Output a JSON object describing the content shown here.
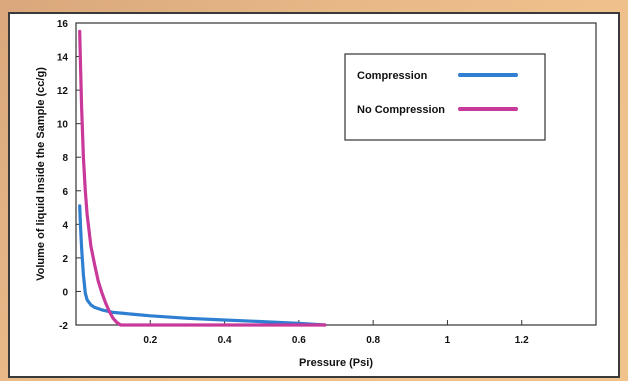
{
  "chart_data": {
    "type": "line",
    "xlabel": "Pressure (Psi)",
    "ylabel": "Volume of liquid Inside the Sample (cc/g)",
    "xlim": [
      0,
      1.4
    ],
    "ylim": [
      -2,
      16
    ],
    "xticks": [
      0.2,
      0.4,
      0.6,
      0.8,
      1,
      1.2
    ],
    "xtick_labels": [
      "0.2",
      "0.4",
      "0.6",
      "0.8",
      "1",
      "1.2"
    ],
    "yticks": [
      -2,
      0,
      2,
      4,
      6,
      8,
      10,
      12,
      14,
      16
    ],
    "ytick_labels": [
      "-2",
      "0",
      "2",
      "4",
      "6",
      "8",
      "10",
      "12",
      "14",
      "16"
    ],
    "grid": false,
    "legend_position": "top-right",
    "series": [
      {
        "name": "Compression",
        "color": "#2e7fd1",
        "x": [
          0.01,
          0.012,
          0.015,
          0.02,
          0.025,
          0.03,
          0.04,
          0.05,
          0.07,
          0.1,
          0.15,
          0.2,
          0.3,
          0.4,
          0.5,
          0.6,
          0.67
        ],
        "y": [
          5.1,
          3.9,
          2.6,
          1.0,
          -0.1,
          -0.5,
          -0.8,
          -0.95,
          -1.1,
          -1.25,
          -1.35,
          -1.45,
          -1.6,
          -1.7,
          -1.8,
          -1.9,
          -2.0
        ]
      },
      {
        "name": "No Compression",
        "color": "#c8399a",
        "x": [
          0.01,
          0.012,
          0.015,
          0.02,
          0.025,
          0.03,
          0.04,
          0.05,
          0.06,
          0.07,
          0.08,
          0.09,
          0.1,
          0.11,
          0.12,
          0.2,
          0.4,
          0.6,
          0.67
        ],
        "y": [
          15.5,
          13.5,
          11.0,
          8.0,
          6.0,
          4.6,
          2.7,
          1.6,
          0.6,
          -0.1,
          -0.7,
          -1.2,
          -1.6,
          -1.85,
          -2.0,
          -2.0,
          -2.0,
          -2.0,
          -2.0
        ]
      }
    ]
  }
}
